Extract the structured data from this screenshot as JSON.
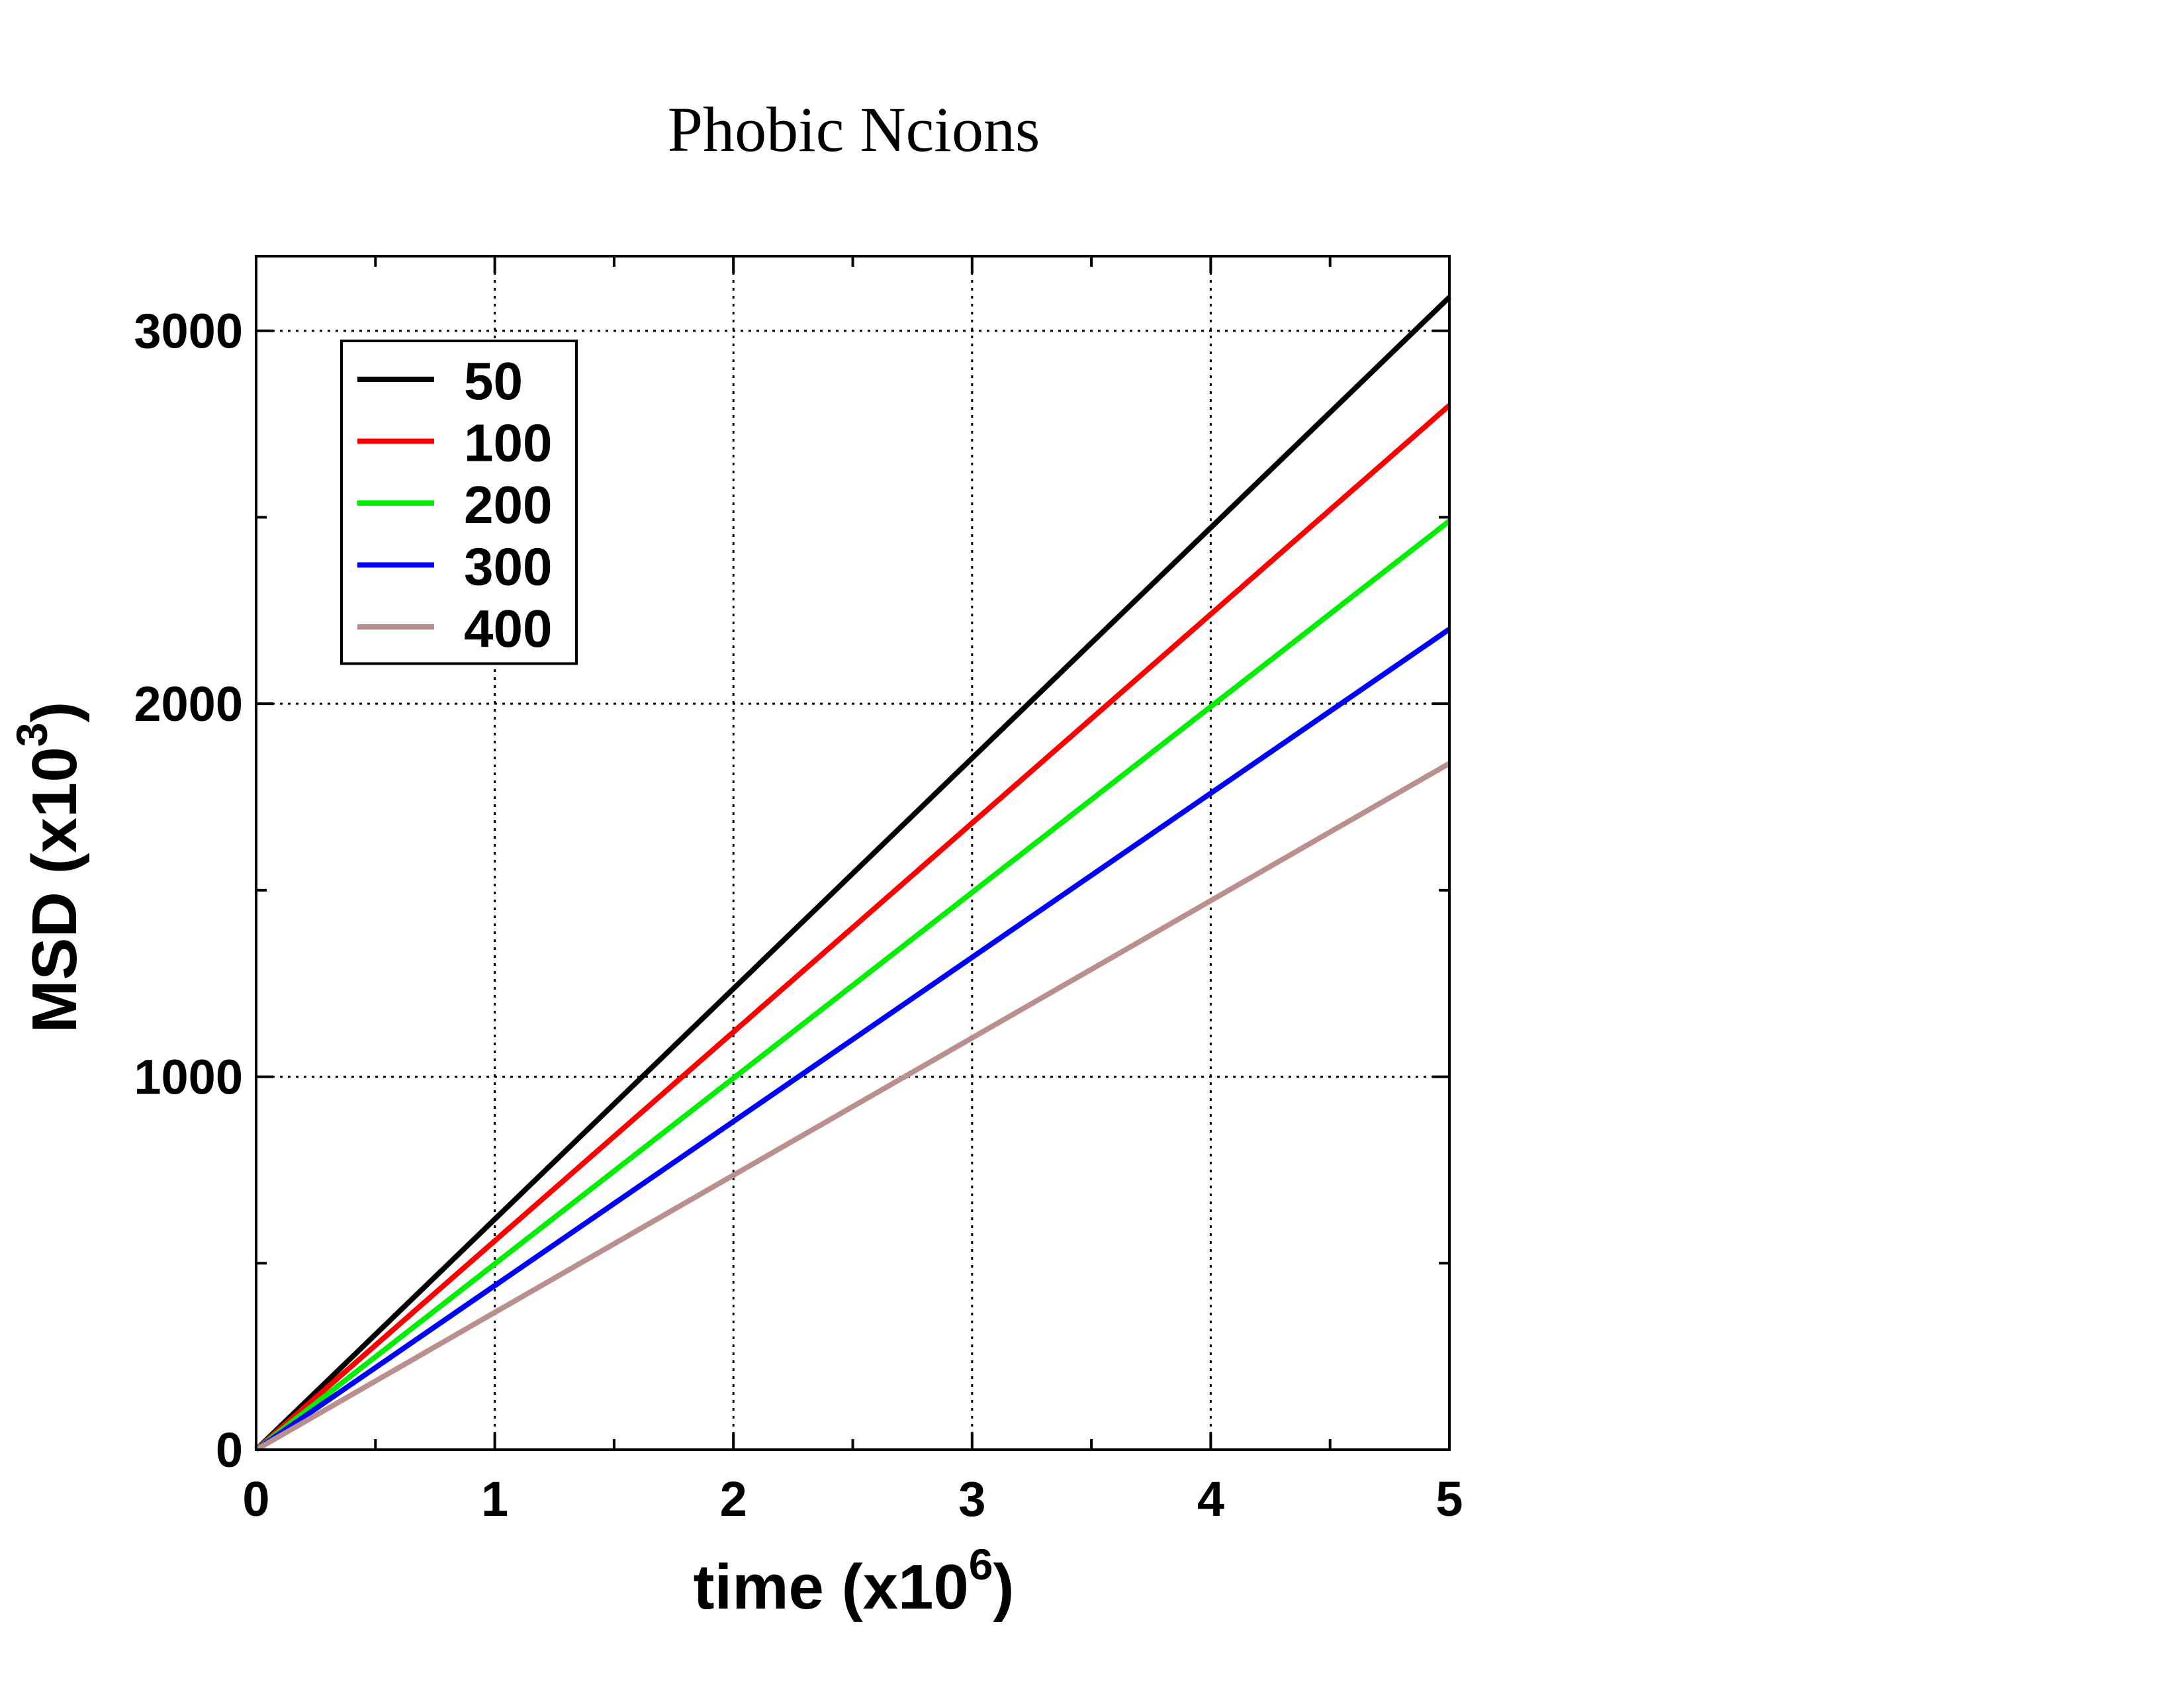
{
  "chart_data": {
    "type": "line",
    "title": "Phobic Ncions",
    "xlabel": {
      "base": "time (x10",
      "sup": "6",
      "close": ")"
    },
    "ylabel": {
      "base": "MSD (x10",
      "sup": "3",
      "close": ")"
    },
    "xlim": [
      0,
      5
    ],
    "ylim": [
      0,
      3200
    ],
    "xticks": [
      0,
      1,
      2,
      3,
      4,
      5
    ],
    "xticks_minor": [
      0.5,
      1.5,
      2.5,
      3.5,
      4.5
    ],
    "yticks": [
      0,
      1000,
      2000,
      3000
    ],
    "yticks_minor": [
      500,
      1500,
      2500
    ],
    "grid": true,
    "legend_position": "top-left",
    "series": [
      {
        "name": "50",
        "color": "#000000",
        "x": [
          0,
          5
        ],
        "y": [
          0,
          3090
        ]
      },
      {
        "name": "100",
        "color": "#ff0000",
        "x": [
          0,
          5
        ],
        "y": [
          0,
          2800
        ]
      },
      {
        "name": "200",
        "color": "#00ee00",
        "x": [
          0,
          5
        ],
        "y": [
          0,
          2490
        ]
      },
      {
        "name": "300",
        "color": "#0000ff",
        "x": [
          0,
          5
        ],
        "y": [
          0,
          2200
        ]
      },
      {
        "name": "400",
        "color": "#bc8f8f",
        "x": [
          0,
          5
        ],
        "y": [
          0,
          1840
        ]
      }
    ]
  }
}
